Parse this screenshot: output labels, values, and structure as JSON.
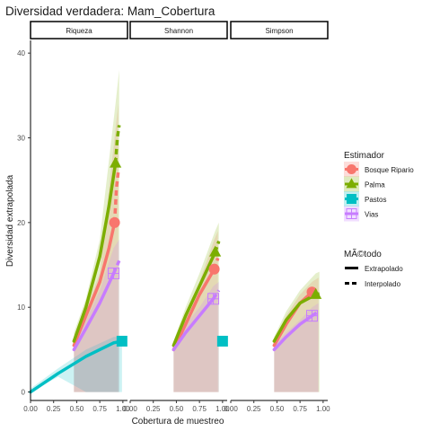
{
  "chart_data": {
    "type": "line",
    "title": "Diversidad verdadera: Mam_Cobertura",
    "xlabel": "Cobertura de muestreo",
    "ylabel": "Diversidad extrapolada",
    "xlim": [
      0,
      1.05
    ],
    "ylim": [
      -1,
      41.5
    ],
    "x_ticks": [
      "0.00",
      "0.25",
      "0.50",
      "0.75",
      "1.00"
    ],
    "x_tick_values": [
      0,
      0.25,
      0.5,
      0.75,
      1.0
    ],
    "y_ticks": [
      "0",
      "10",
      "20",
      "30",
      "40"
    ],
    "y_tick_values": [
      0,
      10,
      20,
      30,
      40
    ],
    "facets": [
      "Riqueza",
      "Shannon",
      "Simpson"
    ],
    "legend_estimador_title": "Estimador",
    "legend_metodo_title": "MÃ©todo",
    "legend_metodo": [
      {
        "label": "Extrapolado",
        "linetype": "solid"
      },
      {
        "label": "Interpolado",
        "linetype": "dashed"
      }
    ],
    "series": [
      {
        "name": "Bosque Ripario",
        "color": "#F8766D",
        "shape": "circle",
        "panels": [
          {
            "interp": [
              [
                0.47,
                5.5
              ],
              [
                0.6,
                9
              ],
              [
                0.75,
                13
              ],
              [
                0.85,
                17
              ],
              [
                0.91,
                20
              ]
            ],
            "extrap": [
              [
                0.91,
                20
              ],
              [
                0.93,
                24
              ],
              [
                0.95,
                26
              ]
            ],
            "point": [
              0.91,
              20
            ],
            "band": [
              [
                0.47,
                0,
                6
              ],
              [
                0.6,
                0,
                10
              ],
              [
                0.75,
                0,
                14
              ],
              [
                0.91,
                0,
                30
              ],
              [
                0.95,
                0,
                34
              ]
            ]
          },
          {
            "interp": [
              [
                0.47,
                5
              ],
              [
                0.6,
                8
              ],
              [
                0.75,
                11.5
              ],
              [
                0.91,
                14.5
              ]
            ],
            "extrap": [
              [
                0.91,
                14.5
              ],
              [
                0.95,
                15.8
              ]
            ],
            "point": [
              0.91,
              14.5
            ],
            "band": [
              [
                0.47,
                0,
                5.5
              ],
              [
                0.6,
                0,
                9
              ],
              [
                0.75,
                0,
                13
              ],
              [
                0.91,
                0,
                18
              ],
              [
                0.95,
                0,
                19
              ]
            ]
          },
          {
            "interp": [
              [
                0.47,
                5.5
              ],
              [
                0.6,
                8
              ],
              [
                0.75,
                10.5
              ],
              [
                0.88,
                11.8
              ]
            ],
            "extrap": [
              [
                0.88,
                11.8
              ],
              [
                0.95,
                11.6
              ]
            ],
            "point": [
              0.88,
              11.8
            ],
            "band": [
              [
                0.47,
                0,
                6
              ],
              [
                0.6,
                0,
                9
              ],
              [
                0.75,
                0,
                11.5
              ],
              [
                0.88,
                0,
                13
              ],
              [
                0.95,
                0,
                13.5
              ]
            ]
          }
        ]
      },
      {
        "name": "Palma",
        "color": "#7CAE00",
        "shape": "triangle",
        "panels": [
          {
            "interp": [
              [
                0.47,
                6
              ],
              [
                0.6,
                10
              ],
              [
                0.75,
                16
              ],
              [
                0.85,
                22
              ],
              [
                0.92,
                27
              ]
            ],
            "extrap": [
              [
                0.92,
                27
              ],
              [
                0.94,
                30
              ],
              [
                0.96,
                31.5
              ]
            ],
            "point": [
              0.92,
              27
            ],
            "band": [
              [
                0.47,
                0,
                7
              ],
              [
                0.6,
                0,
                11
              ],
              [
                0.75,
                0,
                18
              ],
              [
                0.92,
                0,
                34
              ],
              [
                0.96,
                0,
                38
              ]
            ]
          },
          {
            "interp": [
              [
                0.47,
                5.5
              ],
              [
                0.6,
                9
              ],
              [
                0.75,
                12.5
              ],
              [
                0.92,
                16.5
              ]
            ],
            "extrap": [
              [
                0.92,
                16.5
              ],
              [
                0.96,
                17.8
              ]
            ],
            "point": [
              0.92,
              16.5
            ],
            "band": [
              [
                0.47,
                0,
                6
              ],
              [
                0.6,
                0,
                10
              ],
              [
                0.75,
                0,
                14
              ],
              [
                0.92,
                0,
                19
              ],
              [
                0.96,
                0,
                20
              ]
            ]
          },
          {
            "interp": [
              [
                0.47,
                6
              ],
              [
                0.6,
                8.5
              ],
              [
                0.75,
                10.5
              ],
              [
                0.92,
                11.5
              ]
            ],
            "extrap": [
              [
                0.92,
                11.5
              ],
              [
                0.96,
                11.6
              ]
            ],
            "point": [
              0.92,
              11.5
            ],
            "band": [
              [
                0.47,
                0,
                6.5
              ],
              [
                0.6,
                0,
                9.5
              ],
              [
                0.75,
                0,
                12
              ],
              [
                0.92,
                0,
                14
              ],
              [
                0.96,
                0,
                14.2
              ]
            ]
          }
        ]
      },
      {
        "name": "Pastos",
        "color": "#00BFC4",
        "shape": "square",
        "panels": [
          {
            "interp": [
              [
                0,
                0
              ],
              [
                0.3,
                2.2
              ],
              [
                0.6,
                4.2
              ],
              [
                0.9,
                5.8
              ]
            ],
            "extrap": [
              [
                0.9,
                5.8
              ],
              [
                0.99,
                6
              ]
            ],
            "point": [
              0.99,
              6
            ],
            "band": [
              [
                0,
                0,
                0.4
              ],
              [
                0.3,
                1.8,
                2.8
              ],
              [
                0.6,
                0,
                5
              ],
              [
                0.9,
                0,
                6.5
              ],
              [
                0.99,
                0,
                6.5
              ]
            ]
          },
          {
            "interp": [],
            "extrap": [],
            "point": [
              1.0,
              6
            ],
            "band": []
          },
          {
            "interp": [],
            "extrap": [],
            "point": null,
            "band": []
          }
        ]
      },
      {
        "name": "Vias",
        "color": "#C77CFF",
        "shape": "plus-square",
        "panels": [
          {
            "interp": [
              [
                0.47,
                5
              ],
              [
                0.6,
                7.5
              ],
              [
                0.75,
                10.5
              ],
              [
                0.9,
                14
              ]
            ],
            "extrap": [
              [
                0.9,
                14
              ],
              [
                0.96,
                15.5
              ]
            ],
            "point": [
              0.9,
              14
            ],
            "band": [
              [
                0.47,
                0,
                5.5
              ],
              [
                0.6,
                0,
                8.5
              ],
              [
                0.75,
                0,
                12
              ],
              [
                0.9,
                0,
                17
              ],
              [
                0.96,
                0,
                18
              ]
            ]
          },
          {
            "interp": [
              [
                0.47,
                5
              ],
              [
                0.6,
                7
              ],
              [
                0.75,
                9
              ],
              [
                0.9,
                11
              ]
            ],
            "extrap": [
              [
                0.9,
                11
              ],
              [
                0.96,
                12
              ]
            ],
            "point": [
              0.9,
              11
            ],
            "band": [
              [
                0.47,
                0,
                5.5
              ],
              [
                0.6,
                0,
                8
              ],
              [
                0.75,
                0,
                10
              ],
              [
                0.9,
                0,
                12.5
              ],
              [
                0.96,
                0,
                13
              ]
            ]
          },
          {
            "interp": [
              [
                0.47,
                5
              ],
              [
                0.6,
                6.5
              ],
              [
                0.75,
                8
              ],
              [
                0.88,
                9
              ]
            ],
            "extrap": [
              [
                0.88,
                9
              ],
              [
                0.95,
                9.5
              ]
            ],
            "point": [
              0.88,
              9
            ],
            "band": [
              [
                0.47,
                0,
                5.5
              ],
              [
                0.6,
                0,
                7
              ],
              [
                0.75,
                0,
                8.5
              ],
              [
                0.88,
                0,
                10
              ],
              [
                0.95,
                0,
                10.5
              ]
            ]
          }
        ]
      }
    ]
  }
}
